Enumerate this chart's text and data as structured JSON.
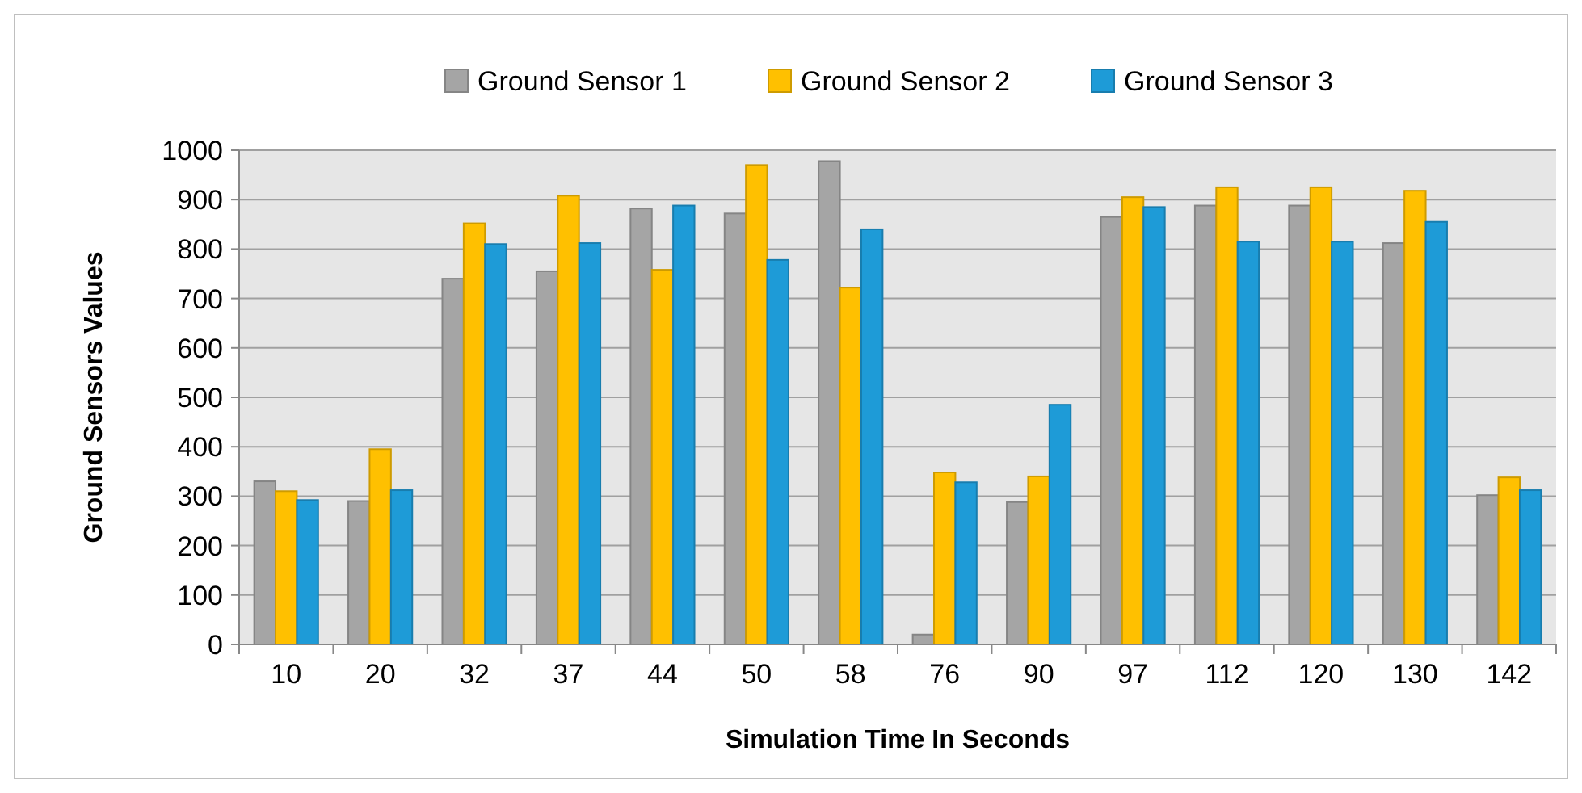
{
  "chart_data": {
    "type": "bar",
    "xlabel": "Simulation Time In Seconds",
    "ylabel": "Ground Sensors Values",
    "categories": [
      "10",
      "20",
      "32",
      "37",
      "44",
      "50",
      "58",
      "76",
      "90",
      "97",
      "112",
      "120",
      "130",
      "142"
    ],
    "series": [
      {
        "name": "Ground Sensor 1",
        "color": "#a5a5a5",
        "values": [
          330,
          290,
          740,
          755,
          882,
          872,
          978,
          20,
          288,
          865,
          888,
          888,
          812,
          302
        ]
      },
      {
        "name": "Ground Sensor 2",
        "color": "#ffc000",
        "values": [
          310,
          395,
          852,
          908,
          758,
          970,
          722,
          348,
          340,
          905,
          925,
          925,
          918,
          338
        ]
      },
      {
        "name": "Ground Sensor 3",
        "color": "#1e9bd7",
        "values": [
          292,
          312,
          810,
          812,
          888,
          778,
          840,
          328,
          485,
          885,
          815,
          815,
          855,
          312
        ]
      }
    ],
    "ylim": [
      0,
      1000
    ],
    "yticks": [
      0,
      100,
      200,
      300,
      400,
      500,
      600,
      700,
      800,
      900,
      1000
    ],
    "grid": "y",
    "legend": "top"
  }
}
